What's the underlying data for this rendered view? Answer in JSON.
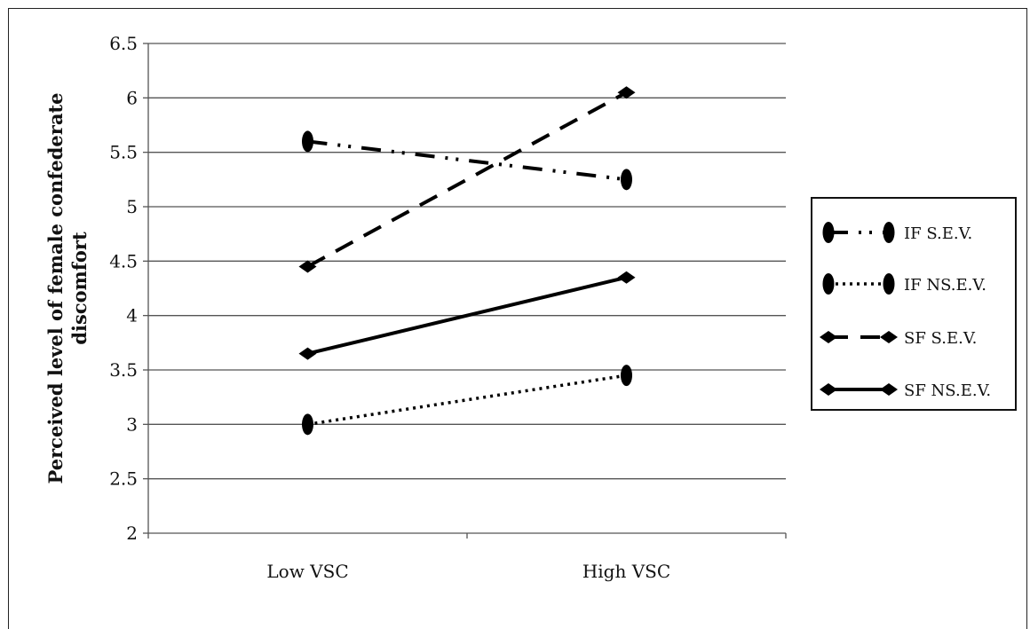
{
  "chart_data": {
    "type": "line",
    "title": "",
    "xlabel": "",
    "ylabel": "Perceived level of female confederate discomfort",
    "ylabel_lines": [
      "Perceived level of female confederate",
      "discomfort"
    ],
    "categories": [
      "Low VSC",
      "High VSC"
    ],
    "ylim": [
      2,
      6.5
    ],
    "yticks": [
      "2",
      "2.5",
      "3",
      "3.5",
      "4",
      "4.5",
      "5",
      "5.5",
      "6",
      "6.5"
    ],
    "grid": "horizontal",
    "legend_position": "right",
    "series": [
      {
        "name": "IF S.E.V.",
        "values": [
          5.6,
          5.25
        ],
        "line_style": "dash-dot-dot",
        "marker": "oval",
        "color": "#000000"
      },
      {
        "name": "IF NS.E.V.",
        "values": [
          3.0,
          3.45
        ],
        "line_style": "dotted",
        "marker": "oval",
        "color": "#000000"
      },
      {
        "name": "SF S.E.V.",
        "values": [
          4.45,
          6.05
        ],
        "line_style": "dashed",
        "marker": "diamond",
        "color": "#000000"
      },
      {
        "name": "SF NS.E.V.",
        "values": [
          3.65,
          4.35
        ],
        "line_style": "solid",
        "marker": "diamond",
        "color": "#000000"
      }
    ]
  }
}
